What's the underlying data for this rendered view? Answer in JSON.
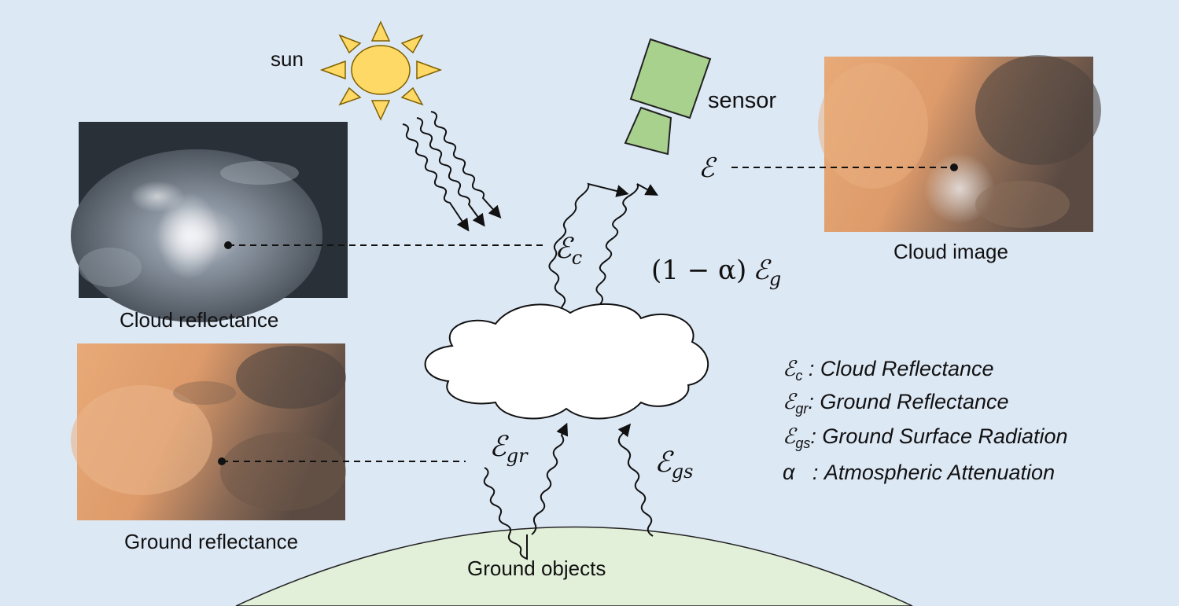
{
  "labels": {
    "sun": "sun",
    "sensor": "sensor",
    "cloud_image": "Cloud image",
    "cloud_reflectance": "Cloud reflectance",
    "ground_reflectance": "Ground reflectance",
    "ground_objects": "Ground objects"
  },
  "symbols": {
    "e_sensor": "ℰ",
    "e_c_base": "ℰ",
    "e_c_sub": "c",
    "one_minus_alpha": "(1 − α)",
    "e_g_base": "ℰ",
    "e_g_sub": "g",
    "e_gr_base": "ℰ",
    "e_gr_sub": "gr",
    "e_gs_base": "ℰ",
    "e_gs_sub": "gs"
  },
  "legend": [
    {
      "base": "ℰ",
      "sub": "c",
      "sep": " : ",
      "text": "Cloud Reflectance"
    },
    {
      "base": "ℰ",
      "sub": "gr",
      "sep": ": ",
      "text": "Ground Reflectance"
    },
    {
      "base": "ℰ",
      "sub": "gs",
      "sep": ": ",
      "text": "Ground Surface Radiation"
    },
    {
      "base": "α",
      "sub": "",
      "sep": "   : ",
      "text": "Atmospheric Attenuation"
    }
  ],
  "colors": {
    "background": "#dde8f5",
    "ground": "#e2efd9",
    "sun": "#ffd966",
    "sensor": "#a9d18e",
    "cloud": "#ffffff"
  }
}
